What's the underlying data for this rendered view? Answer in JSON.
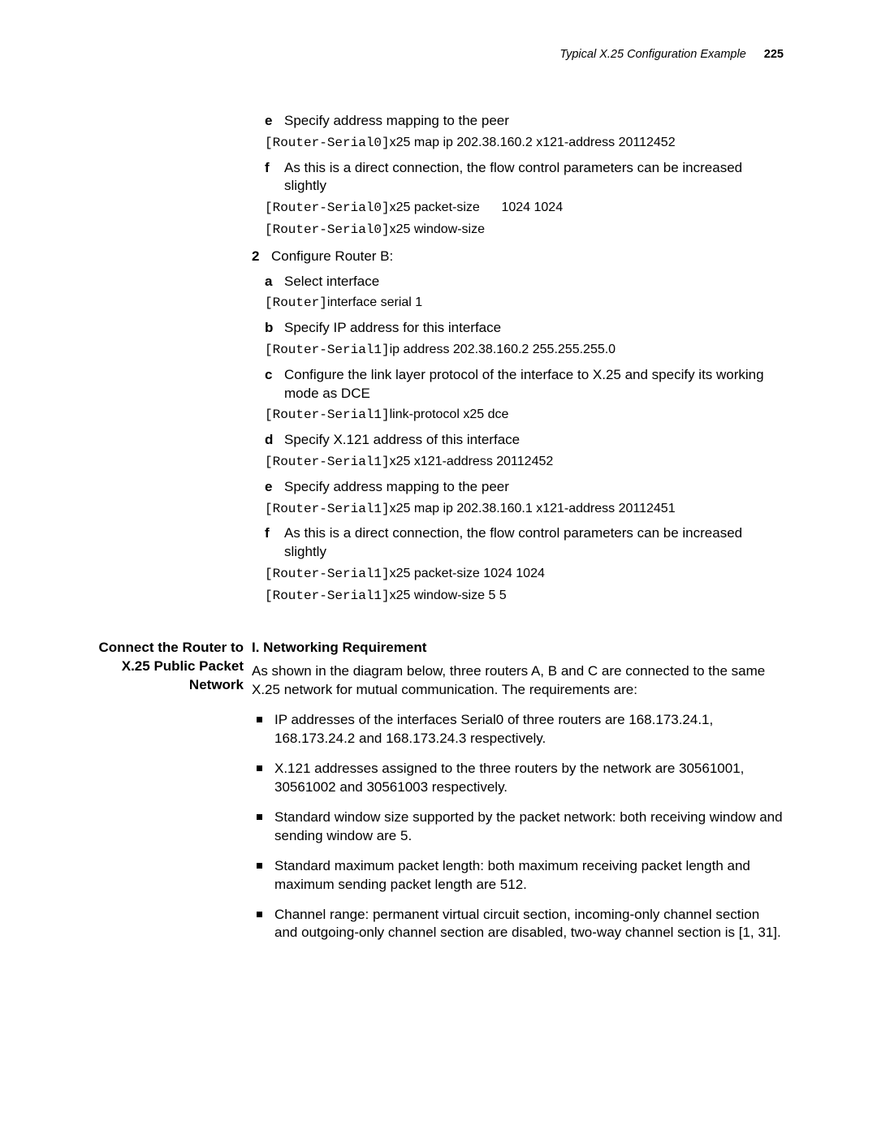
{
  "header": {
    "section_title": "Typical X.25 Configuration Example",
    "page_number": "225"
  },
  "block1": {
    "steps": [
      {
        "kind": "sub",
        "marker": "e",
        "text": "Specify address mapping to the peer"
      },
      {
        "kind": "code",
        "prompt": "[Router-Serial0]",
        "cmd": "x25 map ip 202.38.160.2 x121-address 20112452"
      },
      {
        "kind": "sub",
        "marker": "f",
        "text": "As this is a direct connection, the flow control parameters can be increased slightly"
      },
      {
        "kind": "code",
        "prompt": "[Router-Serial0]",
        "cmd": "x25 packet-size      1024 1024"
      },
      {
        "kind": "code",
        "prompt": "[Router-Serial0]",
        "cmd": "x25 window-size"
      },
      {
        "kind": "step",
        "marker": "2",
        "text": "Configure Router B:"
      },
      {
        "kind": "sub",
        "marker": "a",
        "text": "Select interface"
      },
      {
        "kind": "code",
        "prompt": "[Router]",
        "cmd": "interface serial 1"
      },
      {
        "kind": "sub",
        "marker": "b",
        "text": "Specify IP address for this interface"
      },
      {
        "kind": "code",
        "prompt": "[Router-Serial1]",
        "cmd": "ip address 202.38.160.2 255.255.255.0"
      },
      {
        "kind": "sub",
        "marker": "c",
        "text": "Configure the link layer protocol of the interface to X.25 and specify its working mode as DCE"
      },
      {
        "kind": "code",
        "prompt": "[Router-Serial1]",
        "cmd": "link-protocol x25 dce"
      },
      {
        "kind": "sub",
        "marker": "d",
        "text": "Specify X.121 address of this interface"
      },
      {
        "kind": "code",
        "prompt": "[Router-Serial1]",
        "cmd": "x25 x121-address 20112452"
      },
      {
        "kind": "sub",
        "marker": "e",
        "text": "Specify address mapping to the peer"
      },
      {
        "kind": "code",
        "prompt": "[Router-Serial1]",
        "cmd": "x25 map ip 202.38.160.1 x121-address 20112451"
      },
      {
        "kind": "sub",
        "marker": "f",
        "text": "As this is a direct connection, the flow control parameters can be increased slightly"
      },
      {
        "kind": "code",
        "prompt": "[Router-Serial1]",
        "cmd": "x25 packet-size 1024 1024"
      },
      {
        "kind": "code",
        "prompt": "[Router-Serial1]",
        "cmd": "x25 window-size 5 5"
      }
    ]
  },
  "block2": {
    "side_heading": "Connect the Router to X.25 Public Packet Network",
    "heading": "I. Networking Requirement",
    "intro": "As shown in the diagram below, three routers A, B and C are connected to the same X.25 network for mutual communication. The requirements are:",
    "bullets": [
      "IP addresses of the interfaces Serial0 of three routers are 168.173.24.1, 168.173.24.2 and 168.173.24.3 respectively.",
      "X.121 addresses assigned to the three routers by the network are 30561001, 30561002 and 30561003 respectively.",
      "Standard window size supported by the packet network: both receiving window and sending window are 5.",
      "Standard maximum packet length: both maximum receiving packet length and maximum sending packet length are 512.",
      "Channel range: permanent virtual circuit section, incoming-only channel section and outgoing-only channel section are disabled, two-way channel section is [1, 31]."
    ]
  }
}
